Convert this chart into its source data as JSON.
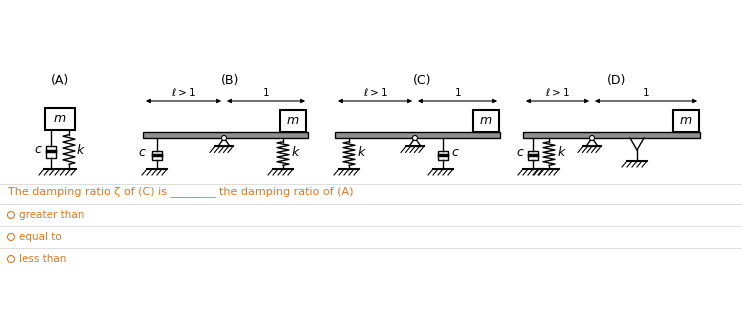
{
  "bg_color": "#ffffff",
  "question_text": "The damping ratio ζ of (C) is ________ the damping ratio of (A)",
  "options": [
    "greater than",
    "equal to",
    "less than"
  ],
  "option_color": "#e07820",
  "question_color": "#e07820",
  "separator_color": "#d0d0d0"
}
